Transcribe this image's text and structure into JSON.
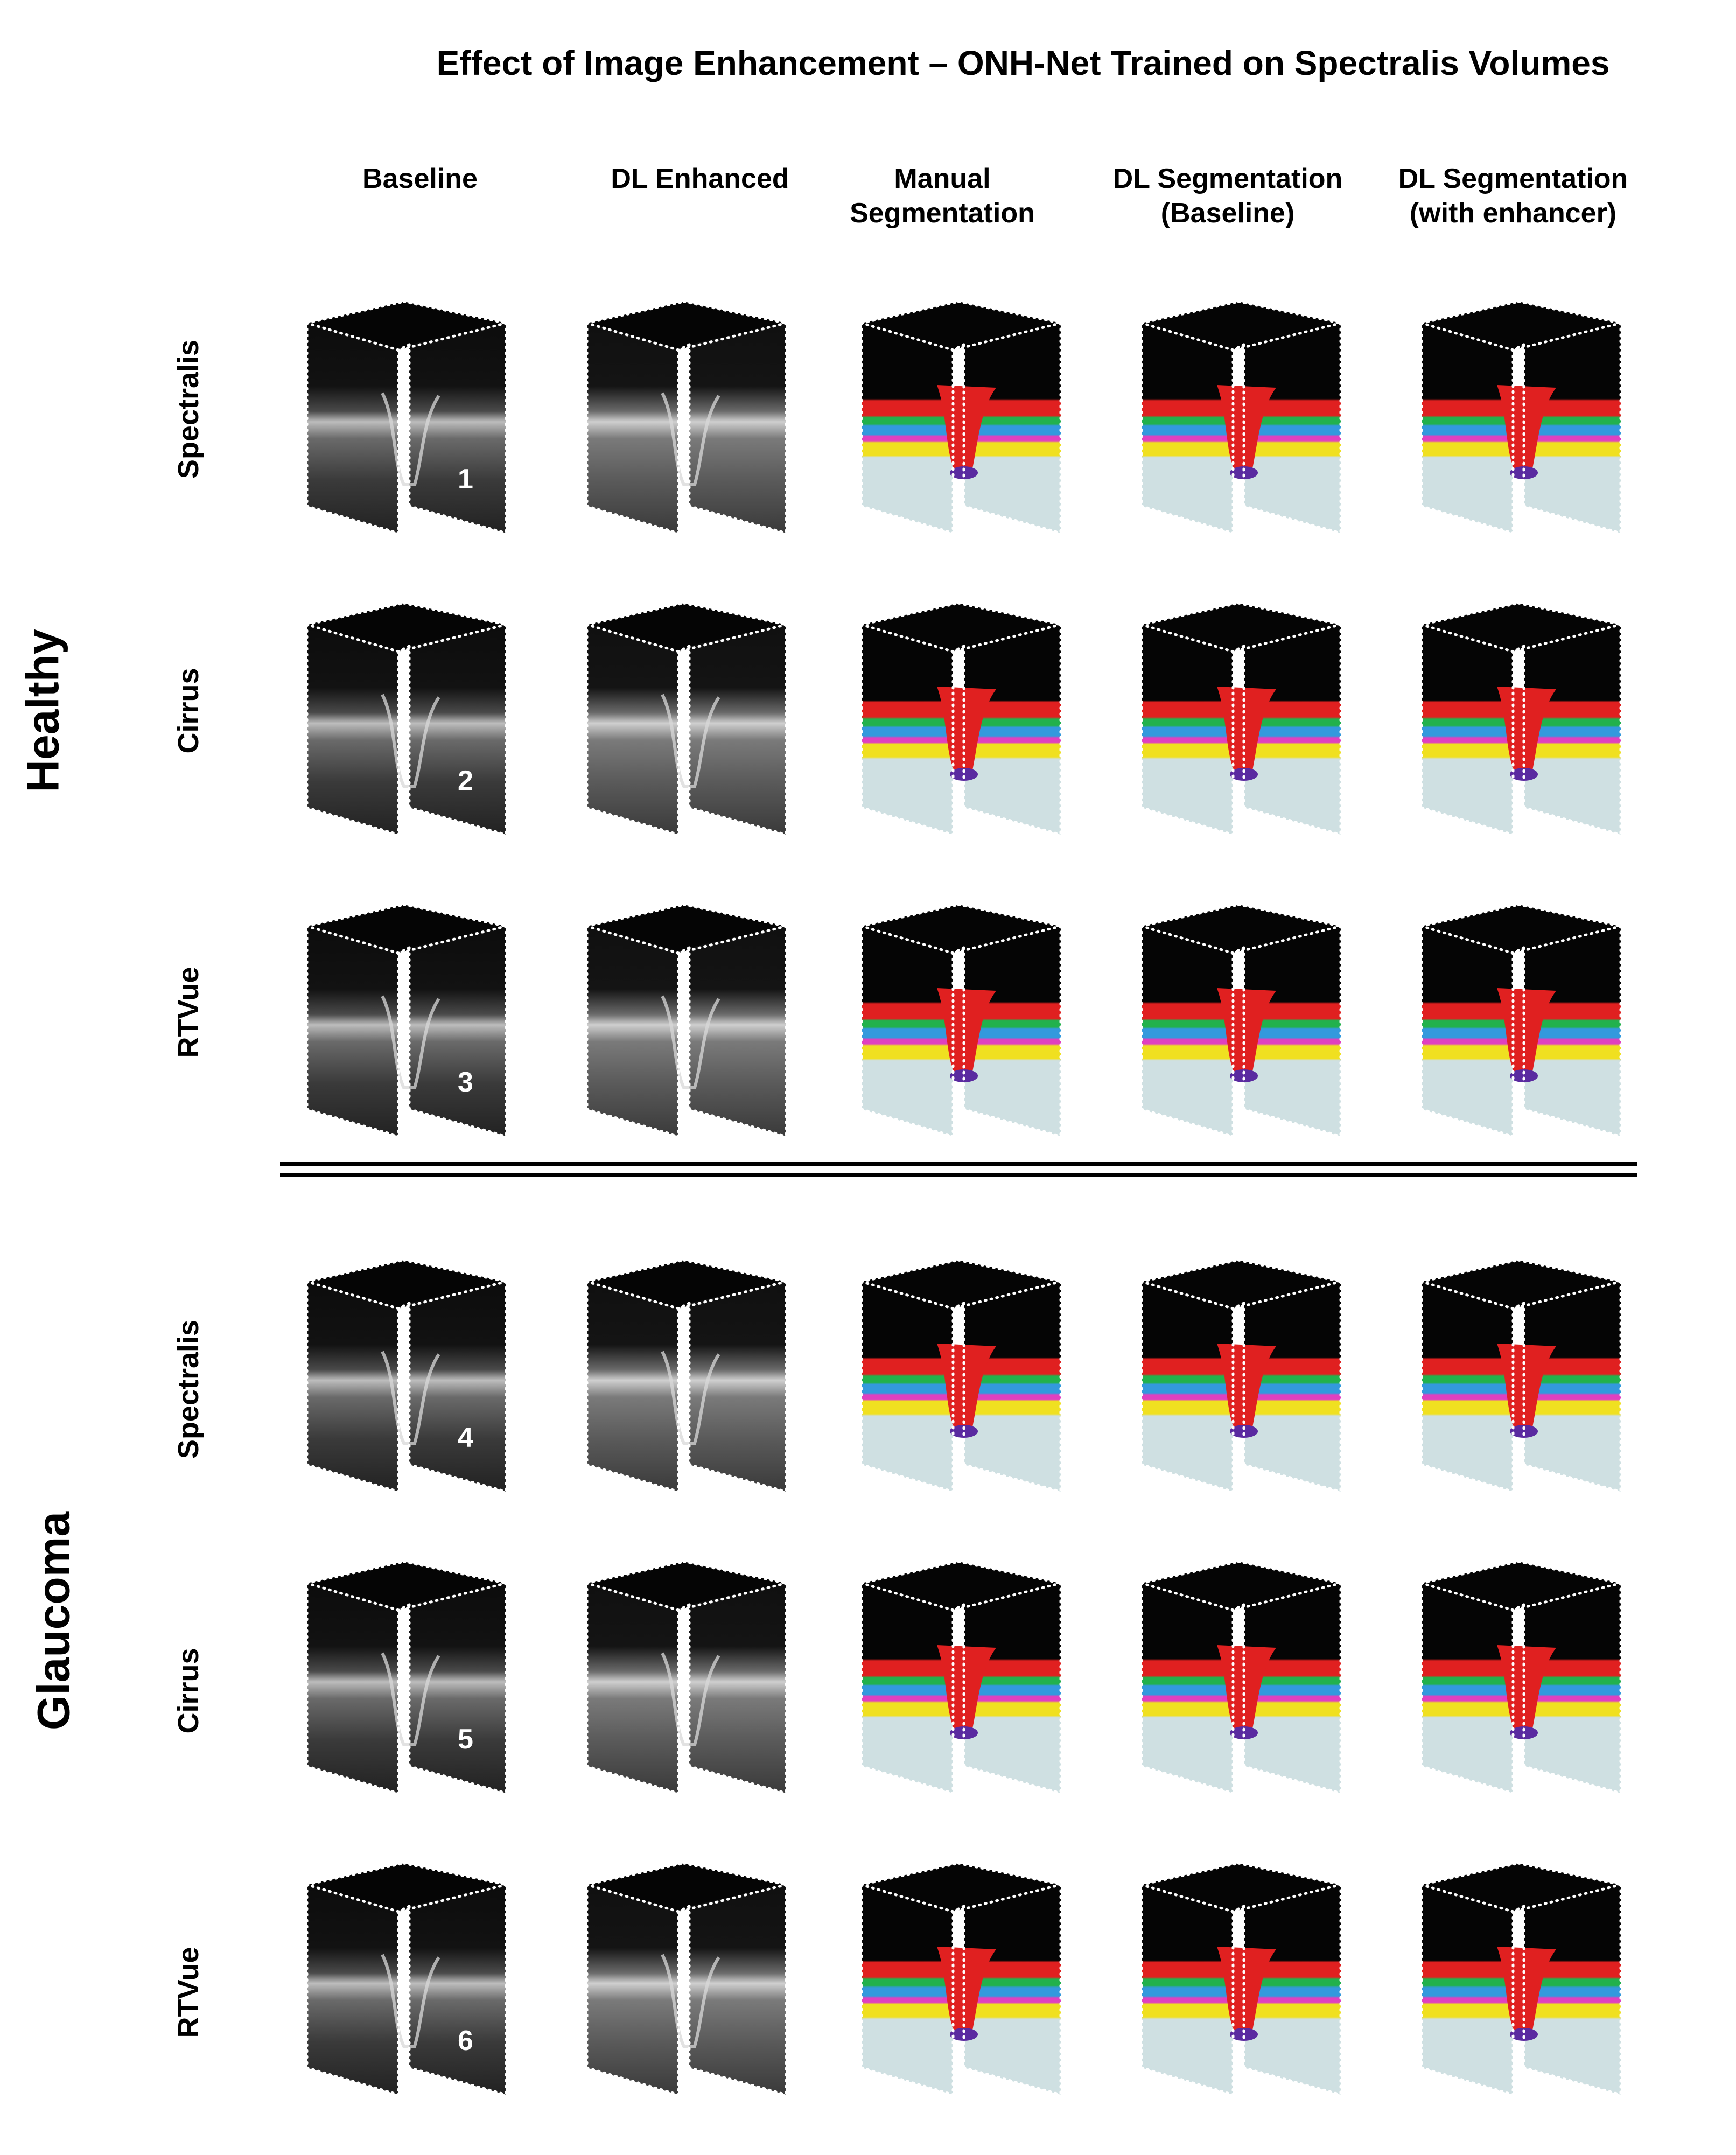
{
  "title": "Effect of Image Enhancement – ONH-Net Trained on Spectralis Volumes",
  "columns": [
    {
      "id": "baseline",
      "label": "Baseline",
      "kind": "oct"
    },
    {
      "id": "enhanced",
      "label": "DL Enhanced",
      "kind": "enh"
    },
    {
      "id": "manual",
      "label": "Manual\nSegmentation",
      "kind": "seg"
    },
    {
      "id": "dl_base",
      "label": "DL Segmentation\n(Baseline)",
      "kind": "seg"
    },
    {
      "id": "dl_enh",
      "label": "DL Segmentation\n(with enhancer)",
      "kind": "seg"
    }
  ],
  "groups": [
    {
      "label": "Healthy",
      "rows": [
        {
          "device": "Spectralis",
          "number": "1"
        },
        {
          "device": "Cirrus",
          "number": "2"
        },
        {
          "device": "RTVue",
          "number": "3"
        }
      ]
    },
    {
      "label": "Glaucoma",
      "rows": [
        {
          "device": "Spectralis",
          "number": "4"
        },
        {
          "device": "Cirrus",
          "number": "5"
        },
        {
          "device": "RTVue",
          "number": "6"
        }
      ]
    }
  ],
  "colors": {
    "background_black": "#050505",
    "tissue_gray": "#cfe0e2",
    "layer_red": "#e02020",
    "layer_green": "#22b14c",
    "layer_blue": "#3399dd",
    "layer_magenta": "#e040c0",
    "layer_yellow": "#f0e020",
    "layer_purple": "#5a2aa0",
    "frame_dots": "#ffffff"
  }
}
